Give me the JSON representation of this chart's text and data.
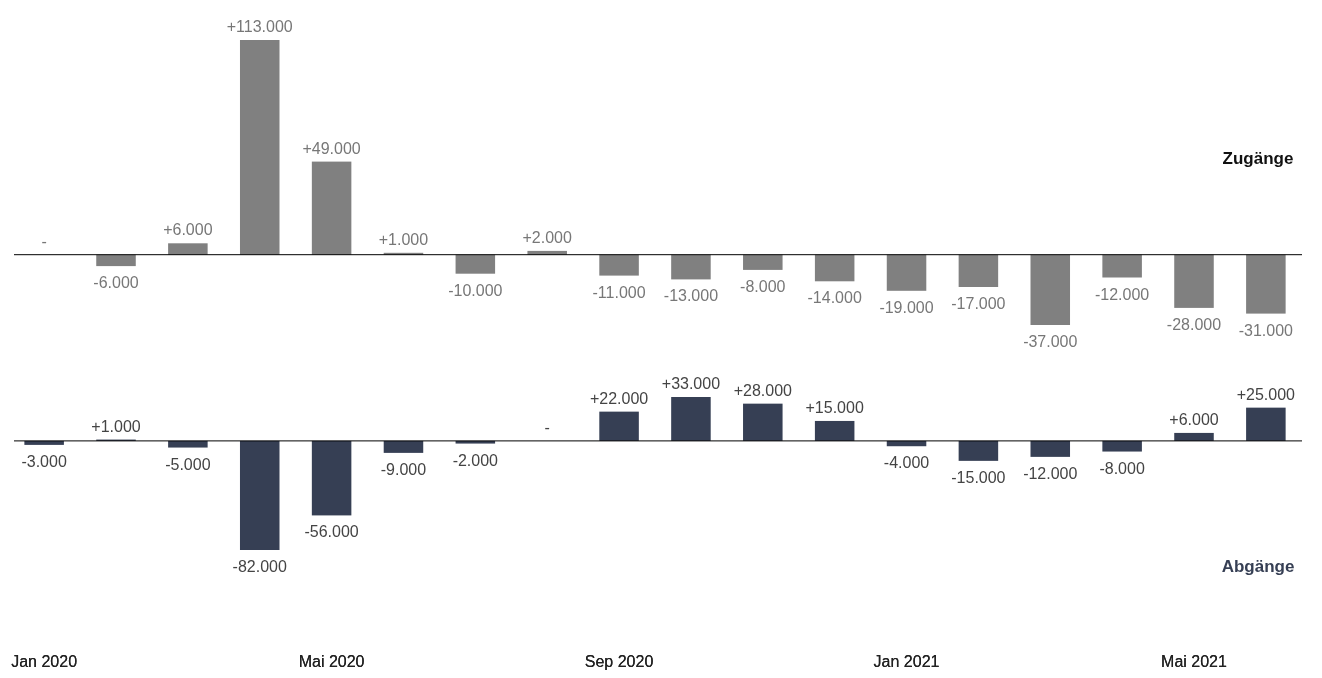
{
  "chart_data": [
    {
      "type": "bar",
      "categories": [
        "Jan 2020",
        null,
        null,
        null,
        "Mai 2020",
        null,
        null,
        null,
        "Sep 2020",
        null,
        null,
        null,
        "Jan 2021",
        null,
        null,
        null,
        "Mai 2021",
        null
      ],
      "tick_labels": false,
      "series": [
        {
          "name": "Zugänge",
          "color": "#808080",
          "values": [
            0,
            -6000,
            6000,
            113000,
            49000,
            1000,
            -10000,
            2000,
            -11000,
            -13000,
            -8000,
            -14000,
            -19000,
            -17000,
            -37000,
            -12000,
            -28000,
            -31000
          ],
          "value_labels": [
            "-",
            "-6.000",
            "+6.000",
            "+113.000",
            "+49.000",
            "+1.000",
            "-10.000",
            "+2.000",
            "-11.000",
            "-13.000",
            "-8.000",
            "-14.000",
            "-19.000",
            "-17.000",
            "-37.000",
            "-12.000",
            "-28.000",
            "-31.000"
          ]
        }
      ]
    },
    {
      "type": "bar",
      "categories": [
        "Jan 2020",
        null,
        null,
        null,
        "Mai 2020",
        null,
        null,
        null,
        "Sep 2020",
        null,
        null,
        null,
        "Jan 2021",
        null,
        null,
        null,
        "Mai 2021",
        null
      ],
      "tick_labels": "x",
      "series": [
        {
          "name": "Abgänge",
          "color": "#363f54",
          "values": [
            -3000,
            1000,
            -5000,
            -82000,
            -56000,
            -9000,
            -2000,
            0,
            22000,
            33000,
            28000,
            15000,
            -4000,
            -15000,
            -12000,
            -8000,
            6000,
            25000
          ],
          "value_labels": [
            "-3.000",
            "+1.000",
            "-5.000",
            "-82.000",
            "-56.000",
            "-9.000",
            "-2.000",
            "-",
            "+22.000",
            "+33.000",
            "+28.000",
            "+15.000",
            "-4.000",
            "-15.000",
            "-12.000",
            "-8.000",
            "+6.000",
            "+25.000"
          ]
        }
      ]
    }
  ]
}
